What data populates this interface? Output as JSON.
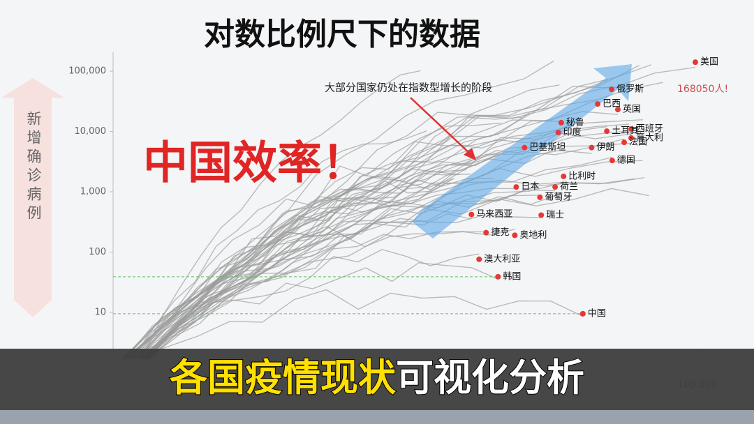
{
  "chart_data": {
    "type": "scatter",
    "title": "对数比例尺下的数据",
    "y_label": "新增确诊病例",
    "annotation": "大部分国家仍处在指数型增长的阶段",
    "callout": "中国效率！",
    "us_note": "168050人!",
    "log_x": true,
    "log_y": true,
    "color": "#e53935",
    "line_color": "#9a9a9a",
    "guide_color": "#5cc05c",
    "xlim": [
      1,
      300000
    ],
    "xticks": [
      {
        "value": 100000,
        "label": "100,000"
      }
    ],
    "ylim": [
      2.5,
      180000
    ],
    "yticks": [
      10,
      100,
      {
        "value": 1000,
        "label": "1,000"
      },
      {
        "value": 10000,
        "label": "10,000"
      },
      {
        "value": 100000,
        "label": "100,000"
      }
    ],
    "categories": [
      "美国",
      "俄罗斯",
      "巴西",
      "英国",
      "西班牙",
      "土耳其",
      "意大利",
      "法国",
      "伊朗",
      "德国",
      "秘鲁",
      "印度",
      "巴基斯坦",
      "比利时",
      "荷兰",
      "葡萄牙",
      "瑞士",
      "日本",
      "马来西亚",
      "奥地利",
      "捷克",
      "澳大利亚",
      "韩国",
      "中国"
    ],
    "x": [
      96000,
      18900,
      14400,
      21300,
      27600,
      17200,
      27600,
      24100,
      12800,
      19100,
      7100,
      6700,
      3480,
      7430,
      6300,
      4690,
      4810,
      2960,
      1240,
      2880,
      1650,
      1440,
      2080,
      10800
    ],
    "values": [
      141000,
      50000,
      28600,
      23100,
      11000,
      10100,
      7800,
      6600,
      5400,
      3300,
      14000,
      9600,
      5400,
      1800,
      1200,
      810,
      410,
      1200,
      420,
      190,
      210,
      76,
      39,
      9.5
    ]
  },
  "banner": {
    "highlight": "各国疫情现状",
    "text": "可视化分析"
  }
}
